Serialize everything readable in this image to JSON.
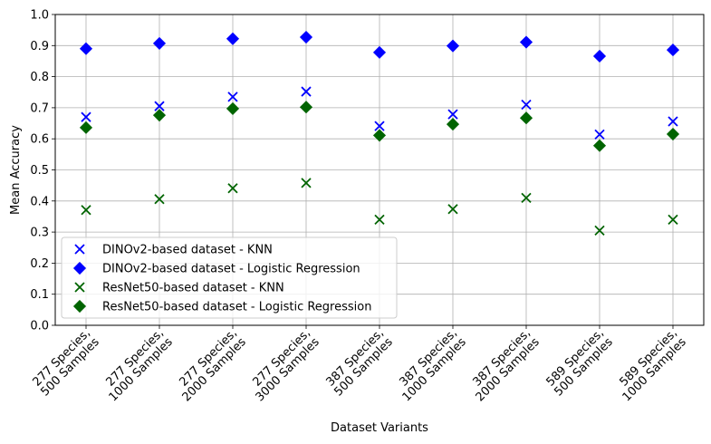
{
  "chart_data": {
    "type": "scatter",
    "title": "",
    "xlabel": "Dataset Variants",
    "ylabel": "Mean Accuracy",
    "ylim": [
      0.0,
      1.0
    ],
    "yticks": [
      "0.0",
      "0.1",
      "0.2",
      "0.3",
      "0.4",
      "0.5",
      "0.6",
      "0.7",
      "0.8",
      "0.9",
      "1.0"
    ],
    "grid": true,
    "legend_position": "lower-left",
    "categories": [
      [
        "277 Species,",
        "500 Samples"
      ],
      [
        "277 Species,",
        "1000 Samples"
      ],
      [
        "277 Species,",
        "2000 Samples"
      ],
      [
        "277 Species,",
        "3000 Samples"
      ],
      [
        "387 Species,",
        "500 Samples"
      ],
      [
        "387 Species,",
        "1000 Samples"
      ],
      [
        "387 Species,",
        "2000 Samples"
      ],
      [
        "589 Species,",
        "500 Samples"
      ],
      [
        "589 Species,",
        "1000 Samples"
      ]
    ],
    "series": [
      {
        "name": "DINOv2-based dataset - KNN",
        "marker": "x",
        "color": "#0000ff",
        "values": [
          0.67,
          0.705,
          0.735,
          0.752,
          0.641,
          0.679,
          0.71,
          0.614,
          0.656
        ]
      },
      {
        "name": "DINOv2-based dataset - Logistic Regression",
        "marker": "diamond",
        "color": "#0000ff",
        "values": [
          0.89,
          0.907,
          0.922,
          0.927,
          0.878,
          0.899,
          0.911,
          0.866,
          0.886
        ]
      },
      {
        "name": "ResNet50-based dataset - KNN",
        "marker": "x",
        "color": "#006400",
        "values": [
          0.371,
          0.406,
          0.441,
          0.458,
          0.34,
          0.374,
          0.41,
          0.305,
          0.34
        ]
      },
      {
        "name": "ResNet50-based dataset - Logistic Regression",
        "marker": "diamond",
        "color": "#006400",
        "values": [
          0.636,
          0.676,
          0.697,
          0.702,
          0.611,
          0.647,
          0.667,
          0.578,
          0.615
        ]
      }
    ]
  }
}
